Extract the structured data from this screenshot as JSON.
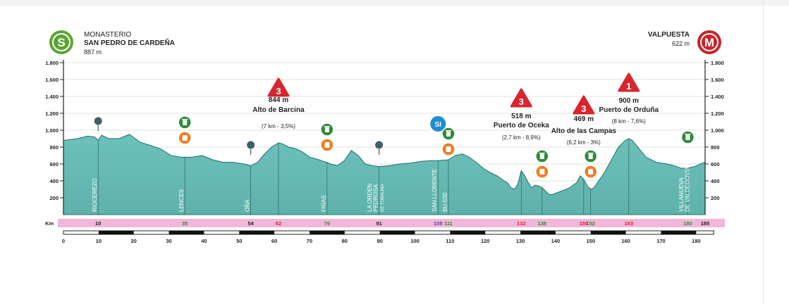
{
  "chart_data": {
    "type": "area",
    "title": "",
    "start": {
      "badge": "S",
      "line1": "MONASTERIO",
      "line2": "SAN PEDRO DE CARDEÑA",
      "elevation": "887 m"
    },
    "finish": {
      "badge": "M",
      "line1": "VALPUESTA",
      "elevation": "622 m"
    },
    "xlim": [
      0,
      185
    ],
    "ylim": [
      0,
      1800
    ],
    "yticks": [
      200,
      400,
      600,
      800,
      1000,
      1200,
      1400,
      1600,
      1800
    ],
    "ytick_labels": [
      "200",
      "400",
      "600",
      "800",
      "1.000",
      "1.200",
      "1.400",
      "1.600",
      "1.800"
    ],
    "xticks": [
      0,
      10,
      20,
      30,
      40,
      50,
      60,
      70,
      80,
      90,
      100,
      110,
      120,
      130,
      140,
      150,
      160,
      170,
      180
    ],
    "km_label": "Km",
    "colors": {
      "area": "#6cc1ba",
      "area_dark": "#1f6f6c",
      "km_band": "#f2b6d8",
      "red": "#d7262e",
      "green": "#2f8a3c",
      "orange": "#f07d1f",
      "blue": "#1d8ecf",
      "purple": "#5b4a9b"
    },
    "profile": {
      "x": [
        0,
        4,
        7,
        9,
        10,
        11,
        13,
        16,
        19,
        22,
        25,
        28,
        31,
        34,
        37,
        40,
        43,
        46,
        49,
        52,
        54,
        56,
        58,
        60,
        62,
        63,
        65,
        67,
        69,
        71,
        73,
        75,
        76,
        77,
        79,
        81,
        83,
        85,
        87,
        89,
        91,
        94,
        97,
        100,
        103,
        106,
        108,
        111,
        113,
        115,
        117,
        119,
        121,
        123,
        125,
        126,
        127,
        128,
        129,
        130,
        131,
        132,
        133,
        134,
        135,
        136,
        137,
        138,
        140,
        141,
        143,
        145,
        146,
        147,
        148,
        149,
        150,
        151,
        152,
        153,
        154,
        156,
        158,
        160,
        162,
        163,
        164,
        166,
        168,
        171,
        174,
        176,
        178,
        180,
        182,
        185
      ],
      "y": [
        880,
        900,
        930,
        920,
        880,
        940,
        900,
        900,
        950,
        860,
        820,
        780,
        700,
        680,
        680,
        700,
        650,
        620,
        620,
        600,
        580,
        620,
        720,
        800,
        850,
        840,
        800,
        780,
        740,
        680,
        660,
        630,
        620,
        600,
        580,
        640,
        760,
        700,
        600,
        580,
        570,
        580,
        600,
        610,
        630,
        640,
        640,
        650,
        700,
        720,
        680,
        620,
        550,
        500,
        460,
        430,
        400,
        380,
        320,
        300,
        360,
        520,
        460,
        380,
        320,
        350,
        340,
        320,
        240,
        240,
        270,
        300,
        320,
        350,
        380,
        460,
        420,
        340,
        300,
        320,
        380,
        500,
        650,
        800,
        880,
        900,
        880,
        780,
        680,
        620,
        600,
        580,
        550,
        550,
        570,
        622
      ]
    },
    "km_labels": [
      {
        "km": 10,
        "text": "10",
        "color": "#222222"
      },
      {
        "km": 35,
        "text": "35",
        "color": "#2f8a3c"
      },
      {
        "km": 54,
        "text": "54",
        "color": "#222222"
      },
      {
        "km": 62,
        "text": "62",
        "color": "#d7262e"
      },
      {
        "km": 76,
        "text": "76",
        "color": "#2f8a3c"
      },
      {
        "km": 91,
        "text": "91",
        "color": "#222222"
      },
      {
        "km": 108,
        "text": "108",
        "color": "#5b4a9b"
      },
      {
        "km": 111,
        "text": "111",
        "color": "#2f8a3c"
      },
      {
        "km": 132,
        "text": "132",
        "color": "#d7262e"
      },
      {
        "km": 138,
        "text": "138",
        "color": "#2f8a3c"
      },
      {
        "km": 150,
        "text": "150",
        "color": "#d7262e"
      },
      {
        "km": 152,
        "text": "152",
        "color": "#2f8a3c"
      },
      {
        "km": 163,
        "text": "163",
        "color": "#d7262e"
      },
      {
        "km": 180,
        "text": "180",
        "color": "#2f8a3c"
      },
      {
        "km": 185,
        "text": "185",
        "color": "#222222"
      }
    ],
    "places": [
      {
        "km": 10,
        "lines": [
          "RIOCEREZO"
        ]
      },
      {
        "km": 35,
        "lines": [
          "LENCES"
        ]
      },
      {
        "km": 54,
        "lines": [
          "OÑA"
        ]
      },
      {
        "km": 76,
        "lines": [
          "FRÍAS"
        ]
      },
      {
        "km": 91,
        "lines": [
          "LA ORDEN",
          "PEDROSA",
          "DE TOBALINA"
        ]
      },
      {
        "km": 108,
        "lines": [
          "SAN LLORENTE"
        ]
      },
      {
        "km": 111,
        "lines": [
          "BU-550"
        ]
      },
      {
        "km": 180,
        "lines": [
          "VILLANUEVA",
          "DE VALDEGOVÍA"
        ]
      }
    ],
    "climbs": [
      {
        "km": 62,
        "category": "3",
        "elevation": "844 m",
        "name": "Alto de Barcina",
        "detail": "(7 km - 3,5%)"
      },
      {
        "km": 132,
        "category": "3",
        "elevation": "518 m",
        "name": "Puerto de Oceka",
        "detail": "(2,7 km - 8,9%)"
      },
      {
        "km": 150,
        "category": "3",
        "elevation": "469 m",
        "name": "Alto de las Campas",
        "detail": "(6,2 km - 3%)"
      },
      {
        "km": 163,
        "category": "1",
        "elevation": "900 m",
        "name": "Puerto de Orduña",
        "detail": "(8 km - 7,6%)"
      }
    ],
    "pins": [
      {
        "km": 10
      },
      {
        "km": 54
      },
      {
        "km": 91
      }
    ],
    "sprint": {
      "km": 108,
      "label": "SI"
    },
    "feed_zones": [
      {
        "km": 35,
        "bin": true,
        "food": true
      },
      {
        "km": 76,
        "bin": true,
        "food": true
      },
      {
        "km": 111,
        "bin": true,
        "food": true
      },
      {
        "km": 138,
        "bin": true,
        "food": true
      },
      {
        "km": 152,
        "bin": true,
        "food": true
      },
      {
        "km": 180,
        "bin": true,
        "food": false
      }
    ]
  }
}
